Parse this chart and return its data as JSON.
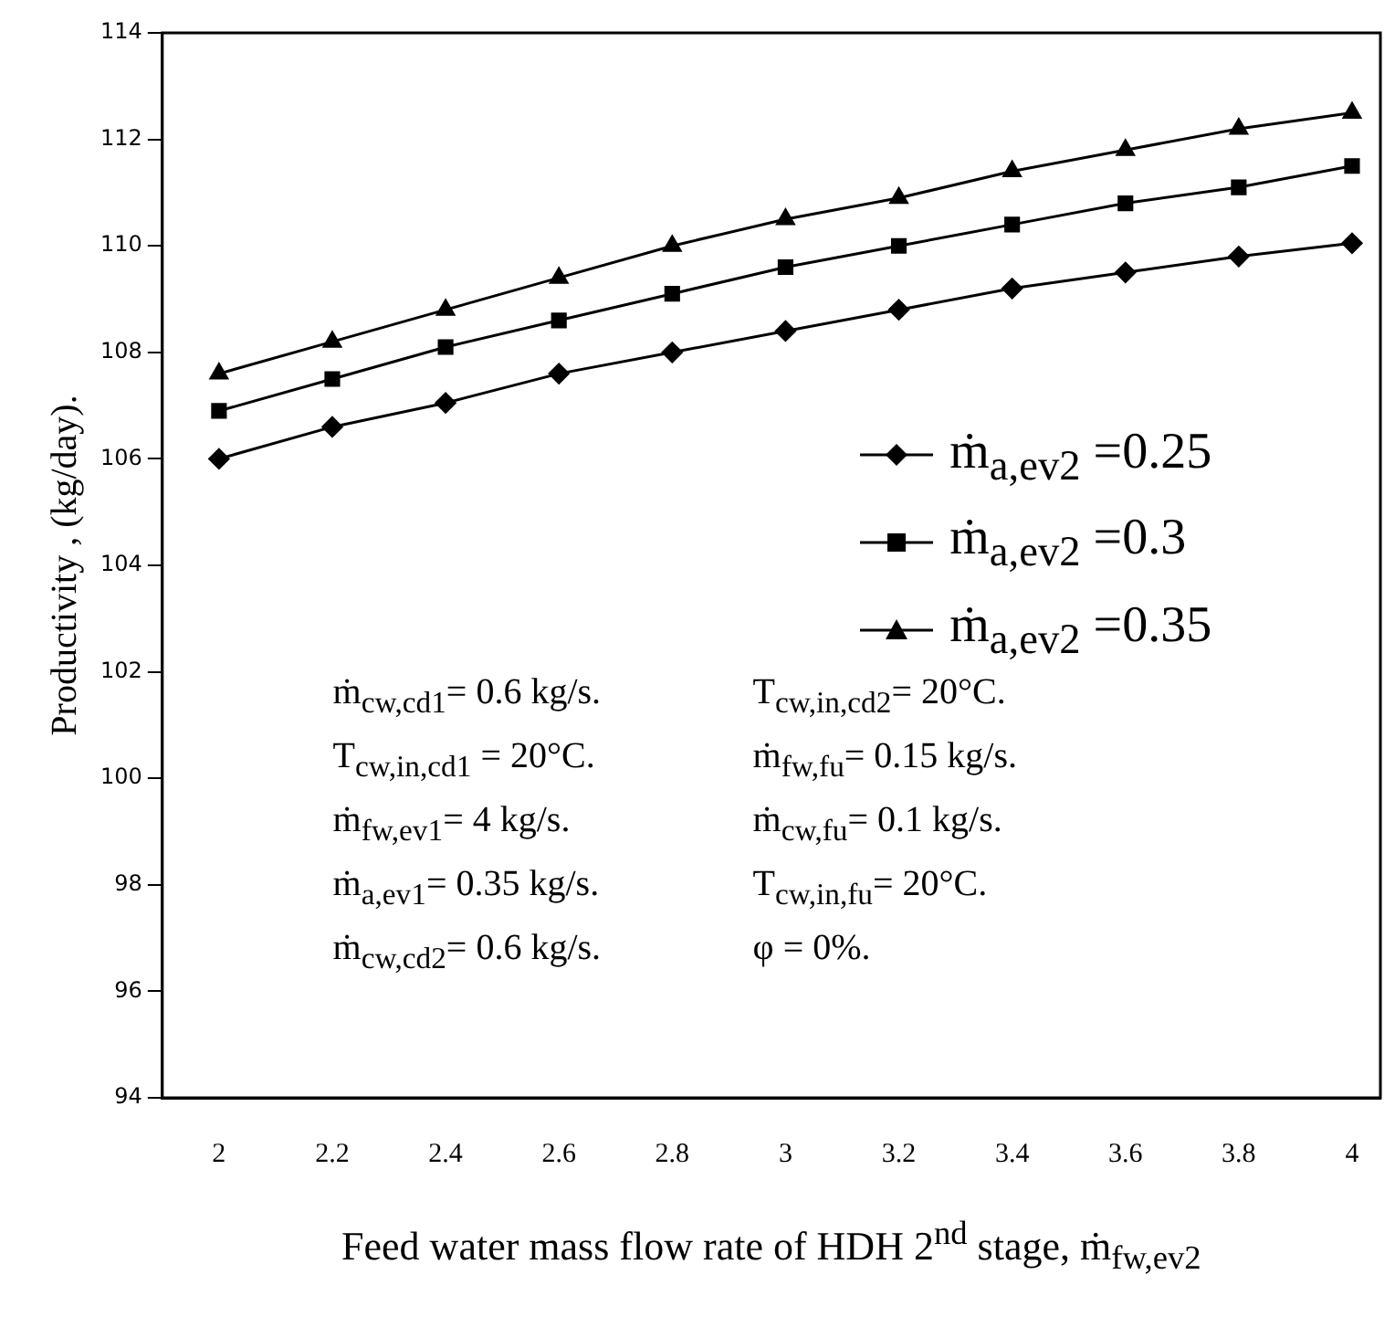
{
  "chart_data": {
    "type": "line",
    "xlabel": "Feed water mass flow rate of HDH 2$^{nd}$ stage, ṁ$_{fw,ev2}$",
    "ylabel": "Productivity , (kg/day).",
    "x": [
      2,
      2.2,
      2.4,
      2.6,
      2.8,
      3,
      3.2,
      3.4,
      3.6,
      3.8,
      4
    ],
    "xlim": [
      1.9,
      4.05
    ],
    "xticks": [
      2,
      2.2,
      2.4,
      2.6,
      2.8,
      3,
      3.2,
      3.4,
      3.6,
      3.8,
      4
    ],
    "ylim": [
      94,
      114
    ],
    "yticks": [
      94,
      96,
      98,
      100,
      102,
      104,
      106,
      108,
      110,
      112,
      114
    ],
    "grid": false,
    "legend": "right",
    "line_style": "solid",
    "series": [
      {
        "name": "ṁ$_{a,ev2}$ =0.25",
        "color": "#000000",
        "marker": "diamond",
        "values": [
          106.0,
          106.6,
          107.05,
          107.6,
          108.0,
          108.4,
          108.8,
          109.2,
          109.5,
          109.8,
          110.05
        ]
      },
      {
        "name": "ṁ$_{a,ev2}$ =0.3",
        "color": "#000000",
        "marker": "square",
        "values": [
          106.9,
          107.5,
          108.1,
          108.6,
          109.1,
          109.6,
          110.0,
          110.4,
          110.8,
          111.1,
          111.5
        ]
      },
      {
        "name": "ṁ$_{a,ev2}$ =0.35",
        "color": "#000000",
        "marker": "triangle",
        "values": [
          107.6,
          108.2,
          108.8,
          109.4,
          110.0,
          110.5,
          110.9,
          111.4,
          111.8,
          112.2,
          112.5
        ]
      }
    ],
    "annotations": [
      "ṁ$_{cw,cd1}$= 0.6 kg/s.",
      "T$_{cw,in,cd2}$= 20°C.",
      "T$_{cw,in,cd1}$ = 20°C.",
      "ṁ$_{fw,fu}$= 0.15 kg/s.",
      "ṁ$_{fw,ev1}$= 4 kg/s.",
      "ṁ$_{cw,fu}$= 0.1 kg/s.",
      "ṁ$_{a,ev1}$= 0.35 kg/s.",
      "T$_{cw,in,fu}$= 20°C.",
      "ṁ$_{cw,cd2}$= 0.6 kg/s.",
      "φ = 0%."
    ]
  }
}
